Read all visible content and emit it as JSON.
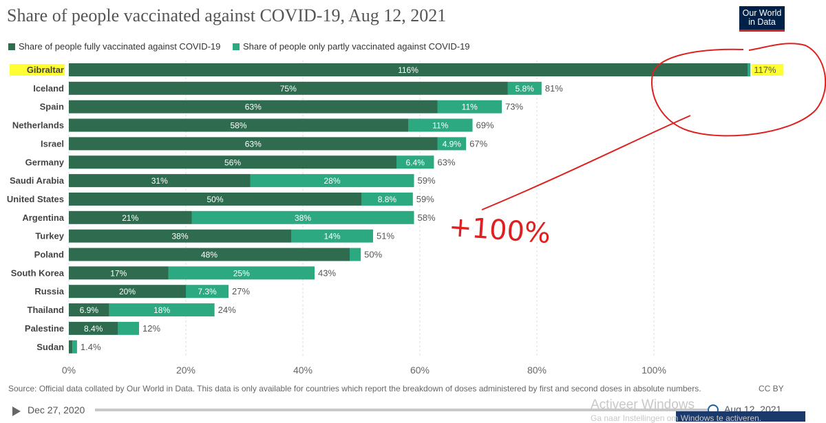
{
  "header": {
    "title": "Share of people vaccinated against COVID-19, Aug 12, 2021",
    "logo_line1": "Our World",
    "logo_line2": "in Data"
  },
  "legend": {
    "full_label": "Share of people fully vaccinated against COVID-19",
    "partial_label": "Share of people only partly vaccinated against COVID-19"
  },
  "colors": {
    "full": "#2e6b4f",
    "partial": "#2da982",
    "highlight": "#ffff33",
    "annotation": "#e02020"
  },
  "chart_data": {
    "type": "bar",
    "orientation": "horizontal",
    "stacked": true,
    "title": "Share of people vaccinated against COVID-19, Aug 12, 2021",
    "categories": [
      "Gibraltar",
      "Iceland",
      "Spain",
      "Netherlands",
      "Israel",
      "Germany",
      "Saudi Arabia",
      "United States",
      "Argentina",
      "Turkey",
      "Poland",
      "South Korea",
      "Russia",
      "Thailand",
      "Palestine",
      "Sudan"
    ],
    "series": [
      {
        "name": "Share of people fully vaccinated against COVID-19",
        "values": [
          116,
          75,
          63,
          58,
          63,
          56,
          31,
          50,
          21,
          38,
          48,
          17,
          20,
          6.9,
          8.4,
          0.6
        ],
        "labels": [
          "116%",
          "75%",
          "63%",
          "58%",
          "63%",
          "56%",
          "31%",
          "50%",
          "21%",
          "38%",
          "48%",
          "17%",
          "20%",
          "6.9%",
          "8.4%",
          ""
        ]
      },
      {
        "name": "Share of people only partly vaccinated against COVID-19",
        "values": [
          0.5,
          5.8,
          11,
          11,
          4.9,
          6.4,
          28,
          8.8,
          38,
          14,
          1.9,
          25,
          7.3,
          18,
          3.6,
          0.8
        ],
        "labels": [
          "",
          "5.8%",
          "11%",
          "11%",
          "4.9%",
          "6.4%",
          "28%",
          "8.8%",
          "38%",
          "14%",
          "",
          "25%",
          "7.3%",
          "18%",
          "",
          ""
        ]
      }
    ],
    "totals": [
      "117%",
      "81%",
      "73%",
      "69%",
      "67%",
      "63%",
      "59%",
      "59%",
      "58%",
      "51%",
      "50%",
      "43%",
      "27%",
      "24%",
      "12%",
      "1.4%"
    ],
    "xlim": [
      0,
      118
    ],
    "xticks": [
      0,
      20,
      40,
      60,
      80,
      100
    ],
    "xtick_labels": [
      "0%",
      "20%",
      "40%",
      "60%",
      "80%",
      "100%"
    ],
    "grid": true,
    "legend_position": "top-left",
    "highlighted_category": "Gibraltar"
  },
  "annotation": {
    "handwritten_text": "+100%"
  },
  "footer": {
    "source": "Source: Official data collated by Our World in Data. This data is only available for countries which report the breakdown of doses administered by first and second doses in absolute numbers.",
    "license": "CC BY"
  },
  "timeline": {
    "start_date": "Dec 27, 2020",
    "end_date": "Aug 12, 2021"
  },
  "os_overlay": {
    "watermark_line1": "Activeer Windows",
    "watermark_line2": "Ga naar Instellingen om Windows te activeren."
  }
}
